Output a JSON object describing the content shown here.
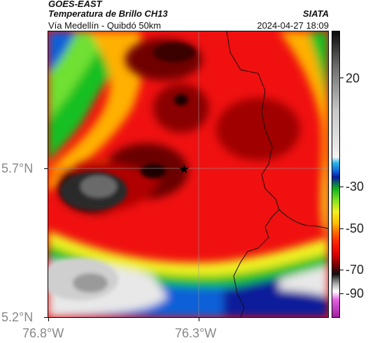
{
  "header": {
    "satellite": "GOES-EAST",
    "product": "Temperatura de Brillo CH13",
    "region": "Vía Medellín - Quibdó 50km",
    "brand": "SIATA",
    "datetime": "2024-04-27 18:09"
  },
  "colorbar": {
    "ticks": [
      "20",
      "-30",
      "-50",
      "-70",
      "-90"
    ]
  },
  "axes": {
    "lon_ticks": [
      "76.8°W",
      "76.3°W"
    ],
    "lat_ticks": [
      "5.7°N",
      "5.2°N"
    ]
  },
  "colors": {
    "hot_red": "#f20d0d",
    "dark_red": "#700000",
    "cold_gray": "#2a2a2a",
    "green": "#18c020",
    "blue": "#1060d8",
    "yellow": "#f0f020"
  },
  "marker": {
    "icon": "star-icon"
  }
}
